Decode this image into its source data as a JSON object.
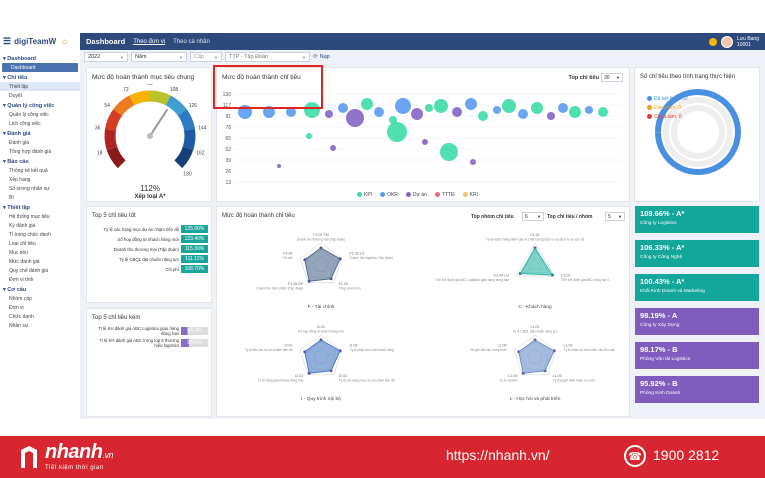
{
  "app": {
    "brand": "digiTeamW",
    "page_title": "Dashboard",
    "tabs": [
      "Theo đơn vị",
      "Theo cá nhân"
    ]
  },
  "user": {
    "name": "Lưu Bang",
    "id": "10001"
  },
  "sidebar": [
    {
      "heading": "Dashboard",
      "items": [
        "Dashboard"
      ]
    },
    {
      "heading": "Chỉ tiêu",
      "items": [
        "Thiết lập",
        "Duyệt"
      ]
    },
    {
      "heading": "Quản lý công việc",
      "items": [
        "Quản lý công việc",
        "Lịch công việc"
      ]
    },
    {
      "heading": "Đánh giá",
      "items": [
        "Đánh giá",
        "Tổng hợp đánh giá"
      ]
    },
    {
      "heading": "Báo cáo",
      "items": [
        "Thống kê kết quả",
        "Xếp hạng",
        "Số lượng nhân sự",
        "BI"
      ]
    },
    {
      "heading": "Thiết lập",
      "items": [
        "Hệ thống mục tiêu",
        "Kỳ đánh giá",
        "Tỉ trọng chức danh",
        "Loại chỉ tiêu",
        "Mục tiêu",
        "Mức đánh giá",
        "Quy chế đánh giá",
        "Đơn vị tính"
      ]
    },
    {
      "heading": "Cơ cấu",
      "items": [
        "Nhóm cấp",
        "Đơn vị",
        "Chức danh",
        "Nhân sự"
      ]
    }
  ],
  "filters": {
    "year": "2022",
    "period": "Năm",
    "level": "Cấp",
    "unit": "TTP - Tập Đoàn",
    "apply": "Nạp"
  },
  "gauge": {
    "title": "Mức độ hoàn thành mục tiêu chung",
    "value_text": "112%",
    "grade_text": "Xếp loại A*",
    "value": 112,
    "ticks": [
      "18",
      "36",
      "54",
      "72",
      "90",
      "108",
      "126",
      "144",
      "162",
      "180"
    ]
  },
  "bubble": {
    "title": "Mức độ hoàn thành chỉ tiêu",
    "top_label": "Top chỉ tiêu",
    "top_value": "30",
    "y_ticks": [
      "130",
      "117",
      "91",
      "78",
      "65",
      "52",
      "39",
      "26",
      "13"
    ],
    "legend": [
      {
        "name": "KPI",
        "color": "#3ddba7"
      },
      {
        "name": "OKR",
        "color": "#5b9bf0"
      },
      {
        "name": "Dự án",
        "color": "#8464c5"
      },
      {
        "name": "TTTĐ",
        "color": "#f06a7a"
      },
      {
        "name": "KRI",
        "color": "#f7c55e"
      }
    ]
  },
  "donut": {
    "title": "Số chỉ tiêu theo tình trạng thực hiện",
    "legend": [
      {
        "label": "Đã kết thúc: 50",
        "color": "#4a90e2"
      },
      {
        "label": "Đang làm: 0",
        "color": "#f0a020"
      },
      {
        "label": "Chưa làm: 0",
        "color": "#e53935"
      }
    ]
  },
  "top_good": {
    "title": "Top 5 chỉ tiêu tốt",
    "rows": [
      {
        "label": "Tỷ lệ các hạng mục dự án chậm tiến độ",
        "value": "125.00%"
      },
      {
        "label": "Số họp đồng từ khách hàng mới",
        "value": "123.40%"
      },
      {
        "label": "Doanh thu thương mại (Tập đoàn)",
        "value": "115.30%"
      },
      {
        "label": "Tỷ lệ CBQL đạt chuẩn năng lực",
        "value": "111.11%"
      },
      {
        "label": "Chi phí",
        "value": "108.70%"
      }
    ]
  },
  "top_bad": {
    "title": "Top 5 chỉ tiêu kém",
    "rows": [
      {
        "label": "Tỉ lệ KH đánh giá ABC Logistics giao hàng đúng hạn",
        "value": "84.4%",
        "pct": 84.4,
        "color": "#8a6bc9"
      },
      {
        "label": "Tỉ lệ KH đánh giá ABC trong top 5 thương hiệu logistics",
        "value": "89.1%",
        "pct": 89.1,
        "color": "#8a6bc9"
      }
    ]
  },
  "radar": {
    "title": "Mức độ hoàn thành chỉ tiêu",
    "group_label": "Top nhóm chỉ tiêu",
    "group_value": "6",
    "per_group_label": "Top chỉ tiêu / nhóm",
    "per_group_value": "5",
    "charts": [
      {
        "name": "F - Tài chính",
        "labels": [
          "F1.01 TM",
          "Doanh thu thương mại (Tập đoàn)",
          "F1.02 LG",
          "Doanh thu logistics (Tập đoàn)",
          "F1.03",
          "Tổng doanh thu",
          "F1.05 DP",
          "Doanh thu định phẩm (Tập đoàn)",
          "F2.02",
          "Chi phí"
        ]
      },
      {
        "name": "C - Khách hàng",
        "labels": [
          "C1.01",
          "Tỷ lệ khách hàng đánh giá về chất lượng dịch vụ và dịch vụ tư vấn tốt",
          "C2.01",
          "Tỉ lệ KH đánh giá ABC trong top 5",
          "C2.04 LG",
          "Tỉ lệ KH đánh giá ABC Logistics giao hàng đúng hạn"
        ]
      },
      {
        "name": "I - Quy trình nội bộ",
        "labels": [
          "I1.01",
          "Số họp đồng từ khách hàng mới",
          "I1.02",
          "Tỷ lệ phản ánh của khách hàng",
          "I2.03",
          "Tỷ lệ các hạng mục dự án chậm tiến độ",
          "I2.02",
          "Tỷ lệ hàng giao không đúng hạn",
          "I2.01",
          "Tỷ lệ tiêu thụ dự án nhiệm tiến độ"
        ]
      },
      {
        "name": "L - Học hỏi và phát triển",
        "labels": [
          "L1.01",
          "Tỷ lệ CBQL đạt chuẩn năng lực",
          "L1.02",
          "Tỷ lệ nhân sự thực hiện các đề xuất",
          "L1.03",
          "Tỷ lệ quyết định nhân lực mới",
          "L1.04",
          "Tỷ lệ cải tiến",
          "L1.05",
          "Số giờ đào tạo trung bình"
        ]
      }
    ]
  },
  "ranking": [
    {
      "value": "108.66% - A*",
      "name": "Công ty Logistics",
      "color": "#12a79a"
    },
    {
      "value": "106.33% - A*",
      "name": "Công ty Công Nghệ",
      "color": "#12a79a"
    },
    {
      "value": "100.43% - A*",
      "name": "Khối Kinh Doanh và Marketing",
      "color": "#12a79a"
    },
    {
      "value": "98.19% - A",
      "name": "Công ty Xây Dựng",
      "color": "#7f5cbd"
    },
    {
      "value": "98.17% - B",
      "name": "Phòng Vận tải Logistics",
      "color": "#7f5cbd"
    },
    {
      "value": "95.92% - B",
      "name": "Phòng Kinh Doanh",
      "color": "#7f5cbd"
    }
  ],
  "footer": {
    "brand": "nhanh",
    "brand_suffix": ".vn",
    "tagline": "Tiết kiệm thời gian",
    "url": "https://nhanh.vn/",
    "phone": "1900 2812"
  }
}
